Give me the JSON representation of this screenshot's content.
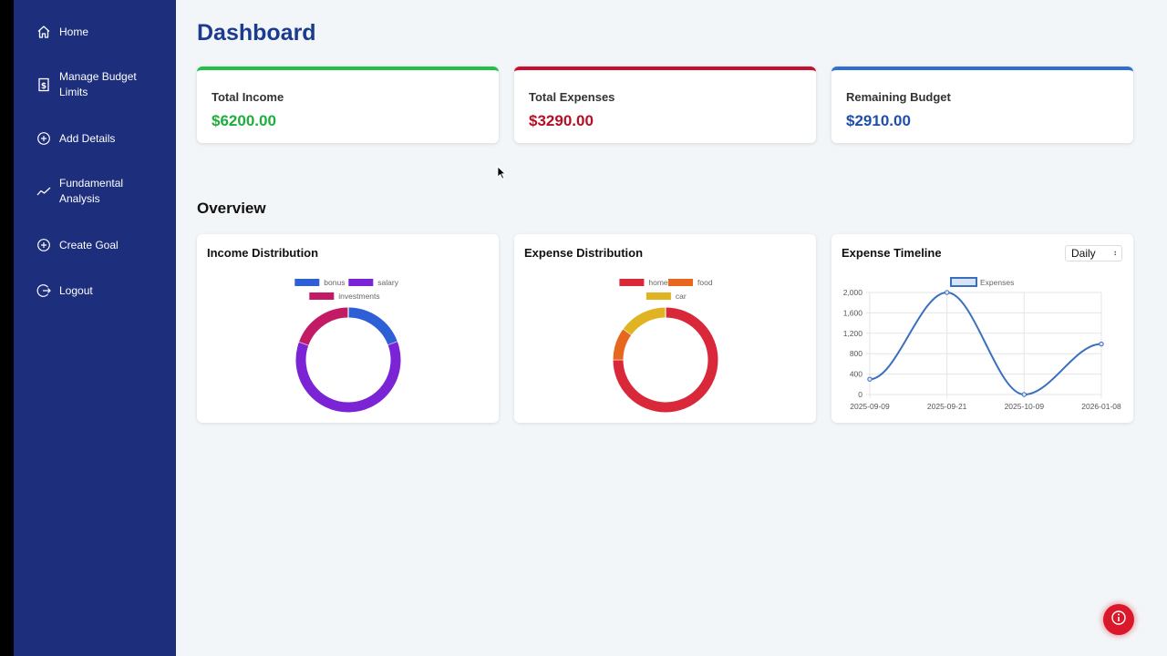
{
  "sidebar": {
    "items": [
      {
        "label": "Home",
        "icon": "home-icon"
      },
      {
        "label": "Manage Budget Limits",
        "icon": "dollar-box-icon"
      },
      {
        "label": "Add Details",
        "icon": "plus-circle-icon"
      },
      {
        "label": "Fundamental Analysis",
        "icon": "trend-line-icon"
      },
      {
        "label": "Create Goal",
        "icon": "plus-circle-icon"
      },
      {
        "label": "Logout",
        "icon": "logout-icon"
      }
    ]
  },
  "header": {
    "title": "Dashboard"
  },
  "stats": [
    {
      "label": "Total Income",
      "value": "$6200.00",
      "color": "#1fae3b",
      "accent": "#22c04a"
    },
    {
      "label": "Total Expenses",
      "value": "$3290.00",
      "color": "#b40f24",
      "accent": "#c8102e"
    },
    {
      "label": "Remaining Budget",
      "value": "$2910.00",
      "color": "#1f4fa8",
      "accent": "#2f6fd4"
    }
  ],
  "overview": {
    "title": "Overview"
  },
  "charts": {
    "timeline_select": {
      "value": "Daily",
      "options": [
        "Daily"
      ]
    }
  },
  "chart_data": [
    {
      "type": "pie",
      "variant": "doughnut",
      "title": "Income Distribution",
      "legend_position": "top",
      "labels": [
        "bonus",
        "salary",
        "investments"
      ],
      "values": [
        1200,
        3800,
        1200
      ],
      "colors": [
        "#2e5fd6",
        "#7a24d6",
        "#c21a64"
      ]
    },
    {
      "type": "pie",
      "variant": "doughnut",
      "title": "Expense Distribution",
      "legend_position": "top",
      "labels": [
        "home",
        "food",
        "car"
      ],
      "values": [
        2470,
        330,
        490
      ],
      "colors": [
        "#d9283a",
        "#e8671f",
        "#e0b421"
      ]
    },
    {
      "type": "line",
      "title": "Expense Timeline",
      "legend_position": "top",
      "x": [
        "2025-09-09",
        "2025-09-21",
        "2025-10-09",
        "2026-01-08"
      ],
      "series": [
        {
          "name": "Expenses",
          "values": [
            300,
            2000,
            0,
            990
          ],
          "color": "#3a6fbd"
        }
      ],
      "ylim": [
        0,
        2000
      ],
      "yticks": [
        "0",
        "400",
        "800",
        "1,200",
        "1,600",
        "2,000"
      ],
      "grid": true
    }
  ]
}
